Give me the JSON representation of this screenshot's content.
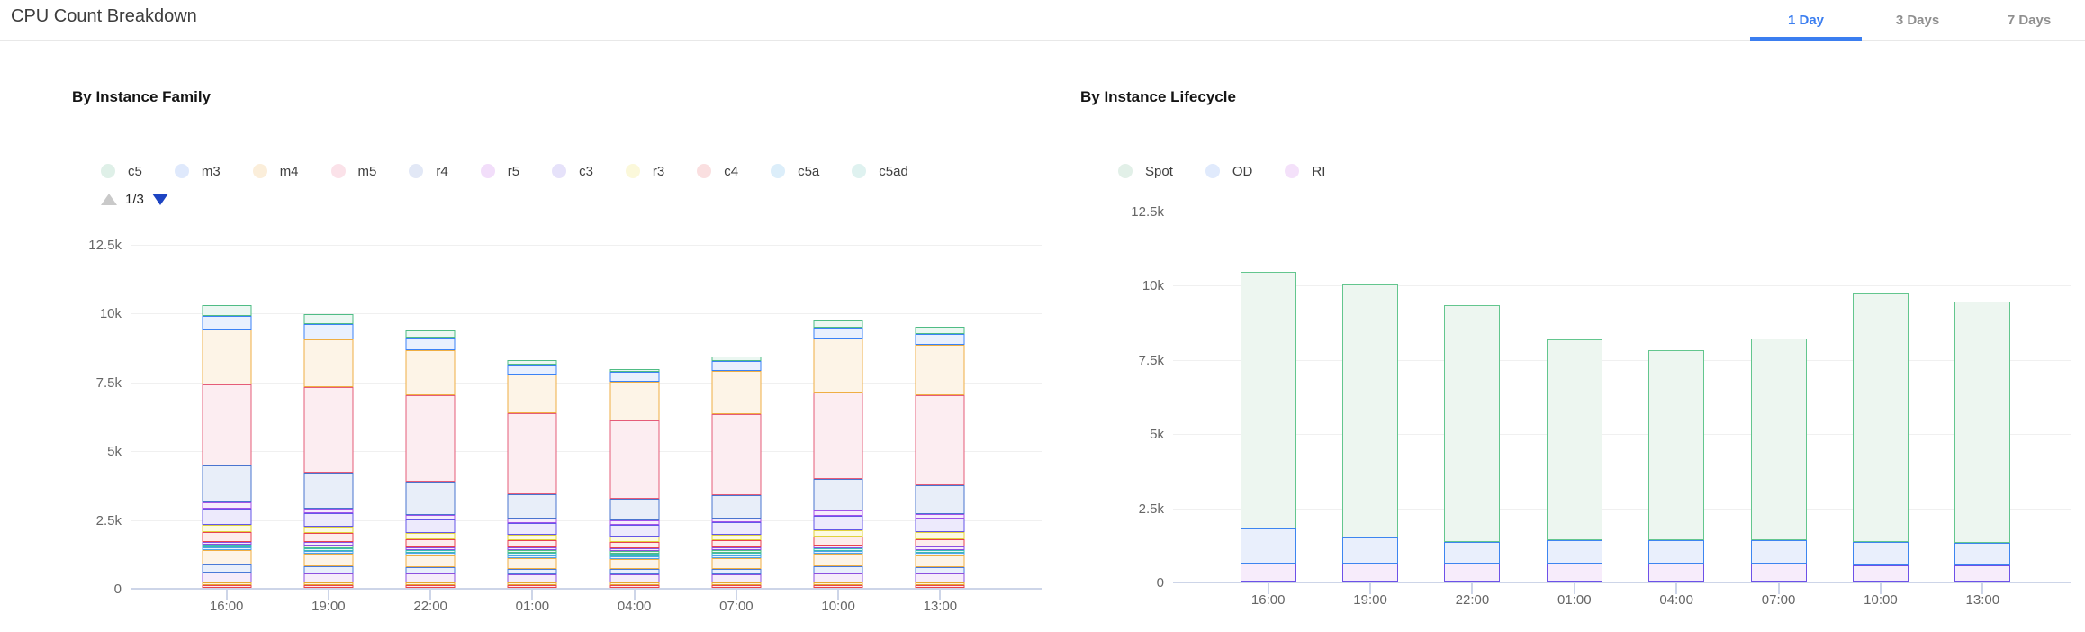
{
  "header": {
    "title": "CPU Count Breakdown",
    "tabs": [
      {
        "label": "1 Day",
        "active": true
      },
      {
        "label": "3 Days",
        "active": false
      },
      {
        "label": "7 Days",
        "active": false
      }
    ],
    "active_tab_color": "#3b7ef0"
  },
  "palette": {
    "red": {
      "stroke": "#e8434f",
      "fill": "#fdecec"
    },
    "gold": {
      "stroke": "#e5a832",
      "fill": "#fdf3df"
    },
    "violet": {
      "stroke": "#8c4fe0",
      "fill": "#f6ecfa"
    },
    "blue": {
      "stroke": "#4a7ad8",
      "fill": "#e9effb"
    },
    "amber": {
      "stroke": "#efae43",
      "fill": "#fdf4e7"
    },
    "skyblue": {
      "stroke": "#4da3e8",
      "fill": "#e9f3fc"
    },
    "teal": {
      "stroke": "#3cb9b4",
      "fill": "#e7f7f6"
    },
    "green": {
      "stroke": "#4fbc85",
      "fill": "#ebf7f1"
    },
    "yellow": {
      "stroke": "#e0d23e",
      "fill": "#fcfae2"
    },
    "lavender": {
      "stroke": "#6456e8",
      "fill": "#edeafc"
    },
    "purple": {
      "stroke": "#a052e8",
      "fill": "#f6ecfc"
    },
    "steelblue": {
      "stroke": "#4a74cf",
      "fill": "#e8eef9"
    },
    "rose": {
      "stroke": "#e55c78",
      "fill": "#fcedf1"
    },
    "blue2": {
      "stroke": "#3b82f6",
      "fill": "#e9f0fe"
    },
    "spotGreen": {
      "stroke": "#63c68e",
      "fill": "#edf6f0"
    },
    "odBlue": {
      "stroke": "#3d85f0",
      "fill": "#e9effc"
    },
    "riPurple": {
      "stroke": "#6d52e8",
      "fill": "#f7ecfb"
    }
  },
  "chart_data": [
    {
      "id": "family",
      "type": "bar",
      "stacked": true,
      "stack_order": "bottom-to-top",
      "title": "By Instance Family",
      "legend_position": "top",
      "legend": [
        {
          "label": "c5",
          "dot": "#dff0e8"
        },
        {
          "label": "m3",
          "dot": "#dfe9fc"
        },
        {
          "label": "m4",
          "dot": "#fbeeda"
        },
        {
          "label": "m5",
          "dot": "#fbe2e9"
        },
        {
          "label": "r4",
          "dot": "#e2e8f6"
        },
        {
          "label": "r5",
          "dot": "#f2defa"
        },
        {
          "label": "c3",
          "dot": "#e6e2fa"
        },
        {
          "label": "r3",
          "dot": "#fbf8da"
        },
        {
          "label": "c4",
          "dot": "#fadfe0"
        },
        {
          "label": "c5a",
          "dot": "#dceefa"
        },
        {
          "label": "c5ad",
          "dot": "#dff2f0"
        }
      ],
      "legend_pagination": {
        "label": "1/3",
        "up_enabled": false,
        "down_enabled": true
      },
      "grid": true,
      "y_axis": {
        "max": 12500,
        "ticks": [
          {
            "value": 0,
            "label": "0"
          },
          {
            "value": 2500,
            "label": "2.5k"
          },
          {
            "value": 5000,
            "label": "5k"
          },
          {
            "value": 7500,
            "label": "7.5k"
          },
          {
            "value": 10000,
            "label": "10k"
          },
          {
            "value": 12500,
            "label": "12.5k"
          }
        ]
      },
      "x_axis": {
        "categories": [
          "16:00",
          "19:00",
          "22:00",
          "01:00",
          "04:00",
          "07:00",
          "10:00",
          "13:00"
        ]
      },
      "series": [
        {
          "name": "unlabeled-red",
          "color": "red",
          "values": [
            110,
            110,
            100,
            90,
            90,
            90,
            100,
            100
          ]
        },
        {
          "name": "unlabeled-gold",
          "color": "gold",
          "values": [
            70,
            70,
            60,
            50,
            50,
            50,
            60,
            60
          ]
        },
        {
          "name": "unlabeled-violet",
          "color": "violet",
          "values": [
            340,
            330,
            320,
            300,
            280,
            290,
            320,
            310
          ]
        },
        {
          "name": "unlabeled-blue",
          "color": "blue",
          "values": [
            300,
            250,
            240,
            200,
            200,
            210,
            260,
            250
          ]
        },
        {
          "name": "unlabeled-amber",
          "color": "amber",
          "values": [
            520,
            460,
            420,
            380,
            360,
            380,
            460,
            430
          ]
        },
        {
          "name": "c5a",
          "color": "skyblue",
          "values": [
            80,
            70,
            70,
            60,
            60,
            60,
            70,
            70
          ]
        },
        {
          "name": "c5ad",
          "color": "teal",
          "values": [
            90,
            70,
            60,
            60,
            60,
            60,
            70,
            60
          ]
        },
        {
          "name": "unlabeled-green",
          "color": "green",
          "values": [
            0,
            90,
            0,
            80,
            70,
            70,
            0,
            0
          ]
        },
        {
          "name": "unlabeled-violet-2",
          "color": "violet",
          "values": [
            120,
            120,
            110,
            100,
            100,
            110,
            120,
            110
          ]
        },
        {
          "name": "c4",
          "color": "red",
          "values": [
            330,
            320,
            300,
            260,
            250,
            260,
            300,
            290
          ]
        },
        {
          "name": "r3",
          "color": "yellow",
          "values": [
            270,
            230,
            220,
            200,
            190,
            200,
            240,
            230
          ]
        },
        {
          "name": "c3",
          "color": "lavender",
          "values": [
            600,
            500,
            480,
            430,
            420,
            440,
            520,
            500
          ]
        },
        {
          "name": "r5",
          "color": "purple",
          "values": [
            220,
            180,
            170,
            150,
            150,
            150,
            190,
            180
          ]
        },
        {
          "name": "r4",
          "color": "steelblue",
          "values": [
            1350,
            1300,
            1200,
            900,
            800,
            850,
            1150,
            1050
          ]
        },
        {
          "name": "m5",
          "color": "rose",
          "values": [
            2950,
            3100,
            3150,
            2950,
            2850,
            2950,
            3150,
            3250
          ]
        },
        {
          "name": "m4",
          "color": "amber",
          "values": [
            2000,
            1750,
            1650,
            1400,
            1400,
            1550,
            1950,
            1850
          ]
        },
        {
          "name": "m3",
          "color": "blue2",
          "values": [
            490,
            550,
            450,
            350,
            350,
            380,
            400,
            380
          ]
        },
        {
          "name": "c5",
          "color": "green",
          "values": [
            390,
            350,
            260,
            180,
            120,
            150,
            300,
            280
          ]
        }
      ]
    },
    {
      "id": "lifecycle",
      "type": "bar",
      "stacked": true,
      "stack_order": "bottom-to-top",
      "title": "By Instance Lifecycle",
      "legend_position": "top",
      "legend": [
        {
          "label": "Spot",
          "dot": "#e2f0e8"
        },
        {
          "label": "OD",
          "dot": "#e0eafc"
        },
        {
          "label": "RI",
          "dot": "#f4e1fa"
        }
      ],
      "legend_pagination": null,
      "grid": true,
      "y_axis": {
        "max": 12500,
        "ticks": [
          {
            "value": 0,
            "label": "0"
          },
          {
            "value": 2500,
            "label": "2.5k"
          },
          {
            "value": 5000,
            "label": "5k"
          },
          {
            "value": 7500,
            "label": "7.5k"
          },
          {
            "value": 10000,
            "label": "10k"
          },
          {
            "value": 12500,
            "label": "12.5k"
          }
        ]
      },
      "x_axis": {
        "categories": [
          "16:00",
          "19:00",
          "22:00",
          "01:00",
          "04:00",
          "07:00",
          "10:00",
          "13:00"
        ]
      },
      "series": [
        {
          "name": "RI",
          "color": "riPurple",
          "values": [
            600,
            600,
            600,
            600,
            600,
            600,
            550,
            550
          ]
        },
        {
          "name": "OD",
          "color": "odBlue",
          "values": [
            1200,
            900,
            750,
            800,
            800,
            800,
            800,
            750
          ]
        },
        {
          "name": "Spot",
          "color": "spotGreen",
          "values": [
            8650,
            8500,
            7950,
            6750,
            6400,
            6800,
            8350,
            8150
          ]
        }
      ]
    }
  ]
}
